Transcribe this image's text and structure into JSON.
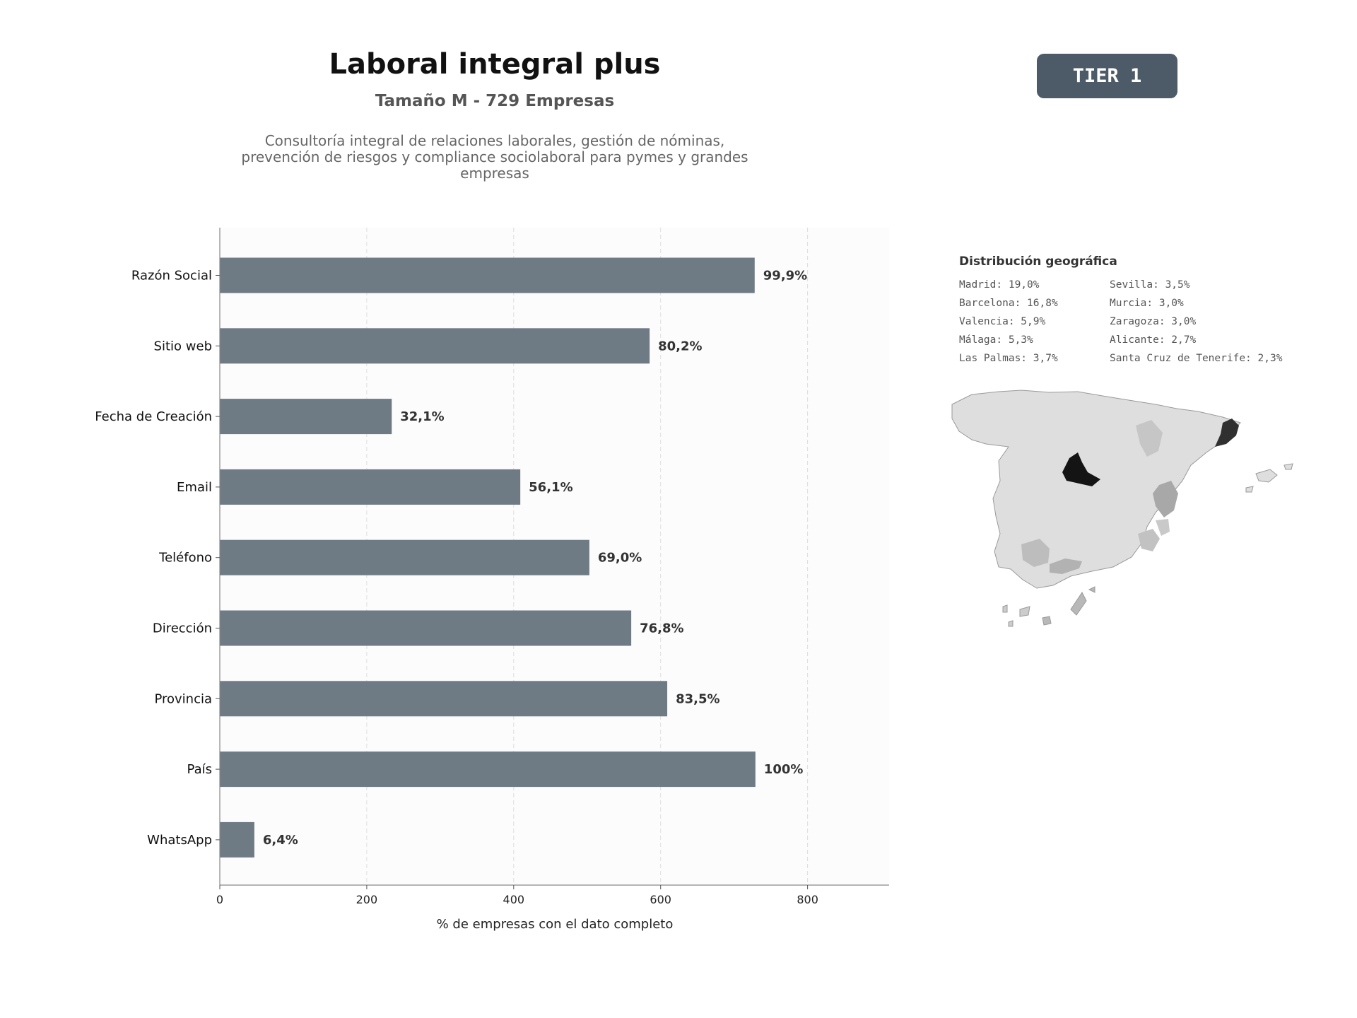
{
  "header": {
    "title": "Laboral integral plus",
    "subtitle": "Tamaño M - 729 Empresas",
    "description": "Consultoría integral de relaciones laborales, gestión de nóminas, prevención de riesgos y compliance sociolaboral para pymes y grandes empresas"
  },
  "badge": {
    "label": "TIER 1"
  },
  "chart_data": {
    "type": "bar",
    "orientation": "horizontal",
    "categories": [
      "Razón Social",
      "Sitio web",
      "Fecha de Creación",
      "Email",
      "Teléfono",
      "Dirección",
      "Provincia",
      "País",
      "WhatsApp"
    ],
    "values": [
      728,
      585,
      234,
      409,
      503,
      560,
      609,
      729,
      47
    ],
    "data_labels": [
      "99,9%",
      "80,2%",
      "32,1%",
      "56,1%",
      "69,0%",
      "76,8%",
      "83,5%",
      "100%",
      "6,4%"
    ],
    "xlabel": "% de empresas con el dato completo",
    "ylabel": "",
    "xlim": [
      0,
      911
    ],
    "xticks": [
      0,
      200,
      400,
      600,
      800
    ],
    "grid": "vertical dashed",
    "bar_color": "#6e7a84"
  },
  "geo": {
    "title": "Distribución geográfica",
    "items": [
      "Madrid: 19,0%",
      "Sevilla: 3,5%",
      "Barcelona: 16,8%",
      "Murcia: 3,0%",
      "Valencia: 5,9%",
      "Zaragoza: 3,0%",
      "Málaga: 5,3%",
      "Alicante: 2,7%",
      "Las Palmas: 3,7%",
      "Santa Cruz de Tenerife: 2,3%"
    ],
    "map_colors": {
      "madrid": "#141414",
      "barcelona": "#303030",
      "valencia": "#a8a8a8",
      "malaga": "#b2b2b2",
      "sevilla": "#bdbdbd",
      "murcia": "#c2c2c2",
      "zaragoza": "#c6c6c6",
      "alicante": "#c9c9c9",
      "las_palmas": "#b8b8b8",
      "tenerife": "#cccccc",
      "default": "#dedede"
    }
  }
}
